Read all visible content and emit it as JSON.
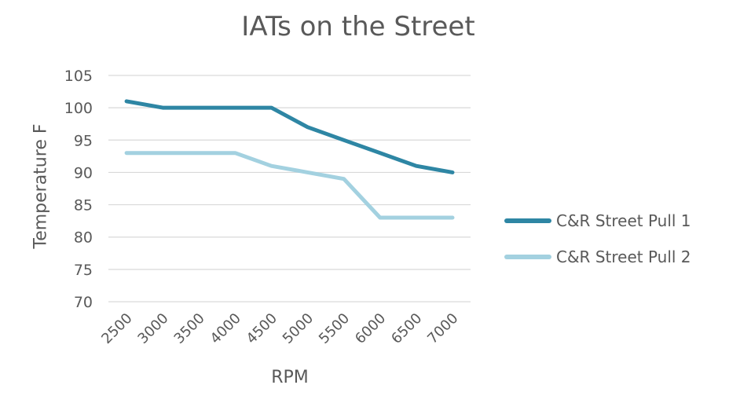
{
  "chart_data": {
    "type": "line",
    "title": "IATs on the Street",
    "xlabel": "RPM",
    "ylabel": "Temperature F",
    "categories": [
      "2500",
      "3000",
      "3500",
      "4000",
      "4500",
      "5000",
      "5500",
      "6000",
      "6500",
      "7000"
    ],
    "ylim": [
      70,
      105
    ],
    "yticks": [
      70,
      75,
      80,
      85,
      90,
      95,
      100,
      105
    ],
    "grid": true,
    "legend_position": "right",
    "series": [
      {
        "name": "C&R Street Pull 1",
        "color": "#2e86a4",
        "values": [
          101,
          100,
          100,
          100,
          100,
          97,
          95,
          93,
          91,
          90
        ]
      },
      {
        "name": "C&R Street Pull 2",
        "color": "#a3d1e0",
        "values": [
          93,
          93,
          93,
          93,
          91,
          90,
          89,
          83,
          83,
          83
        ]
      }
    ]
  }
}
